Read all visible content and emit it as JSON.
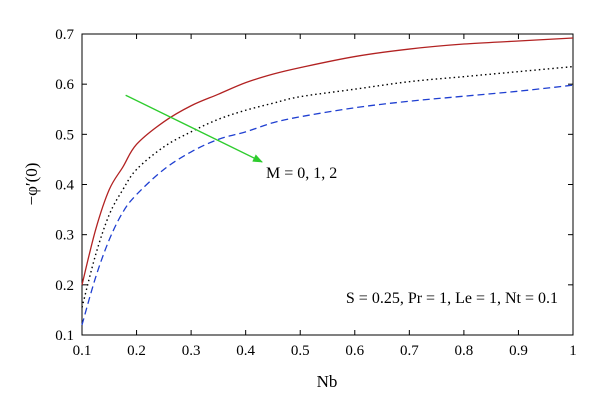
{
  "chart_data": {
    "type": "line",
    "xlabel": "Nb",
    "ylabel": "−φ′(0)",
    "xlim": [
      0.1,
      1.0
    ],
    "ylim": [
      0.1,
      0.7
    ],
    "xticks": [
      "0.1",
      "0.2",
      "0.3",
      "0.4",
      "0.5",
      "0.6",
      "0.7",
      "0.8",
      "0.9",
      "1"
    ],
    "yticks": [
      "0.1",
      "0.2",
      "0.3",
      "0.4",
      "0.5",
      "0.6",
      "0.7"
    ],
    "grid": false,
    "x": [
      0.1,
      0.125,
      0.15,
      0.175,
      0.2,
      0.25,
      0.3,
      0.35,
      0.4,
      0.45,
      0.5,
      0.6,
      0.7,
      0.8,
      0.9,
      1.0
    ],
    "series": [
      {
        "style": "solid",
        "color": "#b22222",
        "values": [
          0.2,
          0.31,
          0.39,
          0.435,
          0.48,
          0.525,
          0.557,
          0.58,
          0.603,
          0.62,
          0.633,
          0.655,
          0.67,
          0.68,
          0.686,
          0.692
        ]
      },
      {
        "style": "dotted",
        "color": "#000000",
        "values": [
          0.155,
          0.26,
          0.34,
          0.39,
          0.43,
          0.475,
          0.505,
          0.53,
          0.548,
          0.562,
          0.575,
          0.59,
          0.605,
          0.615,
          0.625,
          0.635
        ]
      },
      {
        "style": "dashed",
        "color": "#1f3fd1",
        "values": [
          0.12,
          0.215,
          0.29,
          0.345,
          0.38,
          0.43,
          0.465,
          0.49,
          0.505,
          0.523,
          0.535,
          0.553,
          0.566,
          0.576,
          0.586,
          0.598
        ]
      }
    ],
    "arrow": {
      "from": [
        0.18,
        0.578
      ],
      "to": [
        0.43,
        0.445
      ],
      "color": "#2ecc2e",
      "label": "M = 0, 1, 2"
    },
    "annotation": "S = 0.25, Pr = 1, Le = 1, Nt = 0.1"
  }
}
